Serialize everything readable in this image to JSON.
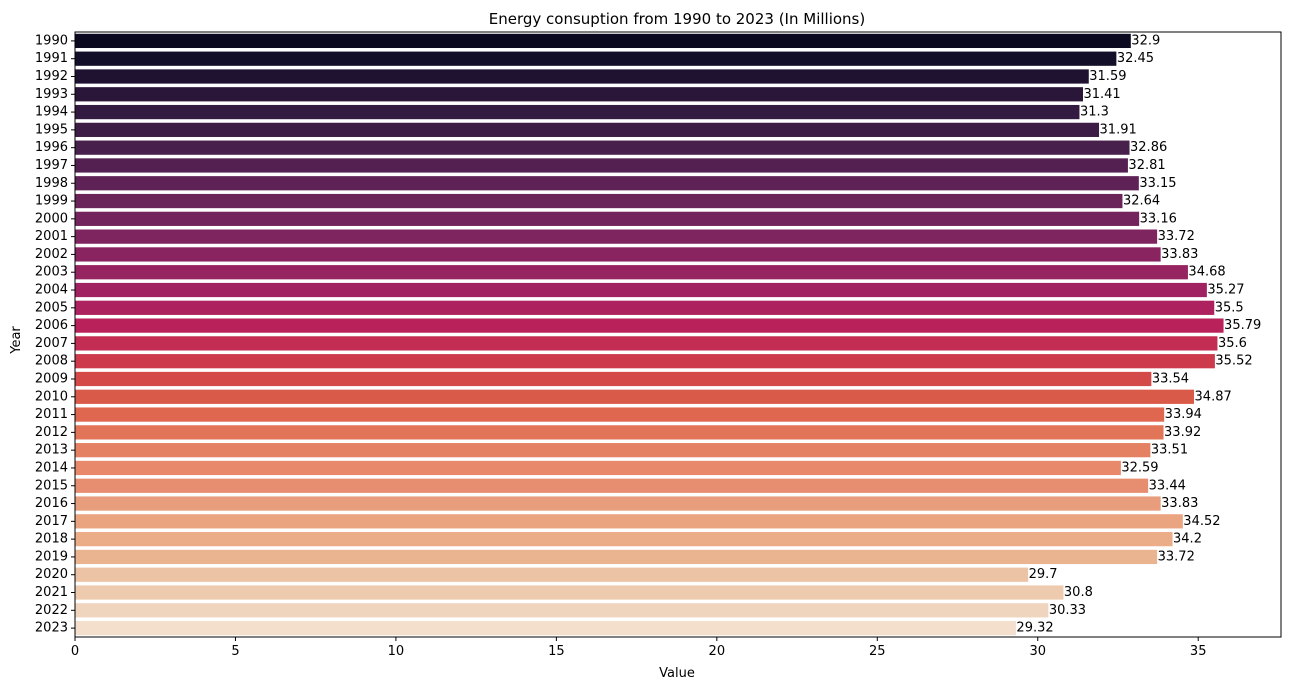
{
  "chart_data": {
    "type": "bar",
    "orientation": "horizontal",
    "title": "Energy consuption from 1990 to 2023 (In Millions)",
    "xlabel": "Value",
    "ylabel": "Year",
    "xlim": [
      0,
      37.58
    ],
    "xticks": [
      0,
      5,
      10,
      15,
      20,
      25,
      30,
      35
    ],
    "grid": false,
    "categories": [
      "1990",
      "1991",
      "1992",
      "1993",
      "1994",
      "1995",
      "1996",
      "1997",
      "1998",
      "1999",
      "2000",
      "2001",
      "2002",
      "2003",
      "2004",
      "2005",
      "2006",
      "2007",
      "2008",
      "2009",
      "2010",
      "2011",
      "2012",
      "2013",
      "2014",
      "2015",
      "2016",
      "2017",
      "2018",
      "2019",
      "2020",
      "2021",
      "2022",
      "2023"
    ],
    "values": [
      32.9,
      32.45,
      31.59,
      31.41,
      31.3,
      31.91,
      32.86,
      32.81,
      33.15,
      32.64,
      33.16,
      33.72,
      33.83,
      34.68,
      35.27,
      35.5,
      35.79,
      35.6,
      35.52,
      33.54,
      34.87,
      33.94,
      33.92,
      33.51,
      32.59,
      33.44,
      33.83,
      34.52,
      34.2,
      33.72,
      29.7,
      30.8,
      30.33,
      29.32
    ],
    "value_labels": [
      "32.9",
      "32.45",
      "31.59",
      "31.41",
      "31.3",
      "31.91",
      "32.86",
      "32.81",
      "33.15",
      "32.64",
      "33.16",
      "33.72",
      "33.83",
      "34.68",
      "35.27",
      "35.5",
      "35.79",
      "35.6",
      "35.52",
      "33.54",
      "34.87",
      "33.94",
      "33.92",
      "33.51",
      "32.59",
      "33.44",
      "33.83",
      "34.52",
      "34.2",
      "33.72",
      "29.7",
      "30.8",
      "30.33",
      "29.32"
    ],
    "colormap": "rocket",
    "colors": [
      "#0b0920",
      "#140f28",
      "#1e1230",
      "#291638",
      "#331a40",
      "#3d1c46",
      "#48204c",
      "#541f51",
      "#5f2256",
      "#6a2459",
      "#73245c",
      "#7e245e",
      "#892460",
      "#952461",
      "#a12260",
      "#ad215e",
      "#b9215a",
      "#c32c53",
      "#cc3a4c",
      "#d44a48",
      "#da5a49",
      "#df664f",
      "#e27558",
      "#e48162",
      "#e7896a",
      "#e68e6f",
      "#e89d7c",
      "#eaa480",
      "#ebac88",
      "#ebb491",
      "#edc3a5",
      "#eecaae",
      "#f0d5be",
      "#f3dfcc"
    ]
  }
}
